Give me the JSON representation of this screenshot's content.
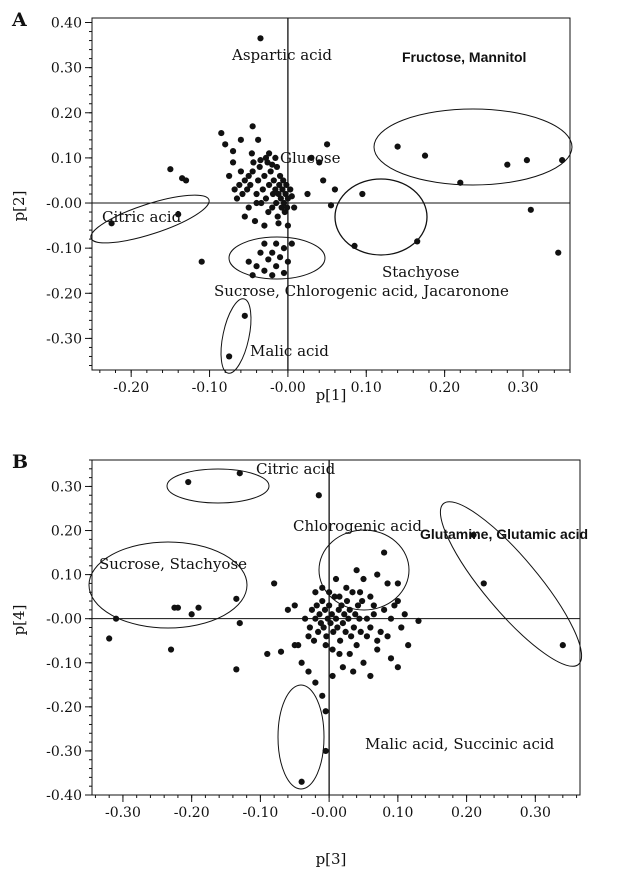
{
  "chart_data": [
    {
      "type": "scatter",
      "panel_label": "A",
      "xlabel": "p[1]",
      "ylabel": "p[2]",
      "xlim": [
        -0.25,
        0.36
      ],
      "ylim": [
        -0.37,
        0.41
      ],
      "xticks": [
        -0.2,
        -0.1,
        0.0,
        0.1,
        0.2,
        0.3
      ],
      "xtick_labels": [
        "-0.20",
        "-0.10",
        "-0.00",
        "0.10",
        "0.20",
        "0.30"
      ],
      "yticks": [
        0.4,
        0.3,
        0.2,
        0.1,
        0.0,
        -0.1,
        -0.2,
        -0.3
      ],
      "ytick_labels": [
        "0.40",
        "0.30",
        "0.20",
        "0.10",
        "-0.00",
        "-0.10",
        "-0.20",
        "-0.30"
      ],
      "grid": false,
      "points": [
        [
          -0.035,
          0.365
        ],
        [
          -0.038,
          0.14
        ],
        [
          -0.045,
          0.17
        ],
        [
          -0.06,
          0.14
        ],
        [
          -0.07,
          0.115
        ],
        [
          -0.085,
          0.155
        ],
        [
          -0.08,
          0.13
        ],
        [
          -0.15,
          0.075
        ],
        [
          -0.135,
          0.055
        ],
        [
          -0.13,
          0.05
        ],
        [
          -0.05,
          0.06
        ],
        [
          -0.048,
          0.04
        ],
        [
          -0.045,
          0.07
        ],
        [
          -0.04,
          0.02
        ],
        [
          -0.038,
          0.05
        ],
        [
          -0.036,
          0.08
        ],
        [
          -0.034,
          0.0
        ],
        [
          -0.032,
          0.03
        ],
        [
          -0.03,
          0.06
        ],
        [
          -0.028,
          0.01
        ],
        [
          -0.026,
          0.09
        ],
        [
          -0.025,
          -0.02
        ],
        [
          -0.024,
          0.04
        ],
        [
          -0.022,
          0.07
        ],
        [
          -0.02,
          -0.01
        ],
        [
          -0.019,
          0.02
        ],
        [
          -0.018,
          0.05
        ],
        [
          -0.016,
          0.03
        ],
        [
          -0.015,
          0.0
        ],
        [
          -0.014,
          0.08
        ],
        [
          -0.013,
          -0.03
        ],
        [
          -0.012,
          0.02
        ],
        [
          -0.011,
          0.04
        ],
        [
          -0.01,
          0.06
        ],
        [
          -0.009,
          0.01
        ],
        [
          -0.008,
          -0.01
        ],
        [
          -0.007,
          0.03
        ],
        [
          -0.006,
          0.05
        ],
        [
          -0.005,
          0.0
        ],
        [
          -0.004,
          -0.02
        ],
        [
          -0.003,
          0.02
        ],
        [
          -0.002,
          0.04
        ],
        [
          -0.001,
          -0.01
        ],
        [
          0.0,
          0.01
        ],
        [
          -0.052,
          0.03
        ],
        [
          -0.055,
          0.05
        ],
        [
          -0.058,
          0.02
        ],
        [
          -0.06,
          0.07
        ],
        [
          -0.062,
          0.04
        ],
        [
          -0.065,
          0.01
        ],
        [
          -0.042,
          -0.04
        ],
        [
          -0.044,
          0.09
        ],
        [
          -0.046,
          0.11
        ],
        [
          -0.028,
          0.1
        ],
        [
          -0.02,
          0.085
        ],
        [
          -0.016,
          0.1
        ],
        [
          -0.024,
          0.11
        ],
        [
          -0.03,
          -0.05
        ],
        [
          -0.012,
          -0.045
        ],
        [
          0.0,
          -0.05
        ],
        [
          0.005,
          0.015
        ],
        [
          0.008,
          -0.01
        ],
        [
          0.003,
          0.03
        ],
        [
          -0.07,
          0.09
        ],
        [
          -0.075,
          0.06
        ],
        [
          -0.068,
          0.03
        ],
        [
          -0.035,
          0.095
        ],
        [
          -0.04,
          0.0
        ],
        [
          -0.05,
          -0.01
        ],
        [
          -0.055,
          -0.03
        ],
        [
          0.05,
          0.13
        ],
        [
          0.045,
          0.05
        ],
        [
          0.06,
          0.03
        ],
        [
          0.04,
          0.09
        ],
        [
          0.055,
          -0.005
        ],
        [
          0.03,
          0.1
        ],
        [
          0.025,
          0.02
        ],
        [
          -0.03,
          -0.09
        ],
        [
          -0.015,
          -0.09
        ],
        [
          -0.005,
          -0.1
        ],
        [
          0.005,
          -0.09
        ],
        [
          -0.02,
          -0.11
        ],
        [
          -0.035,
          -0.11
        ],
        [
          -0.01,
          -0.12
        ],
        [
          -0.025,
          -0.125
        ],
        [
          0.0,
          -0.13
        ],
        [
          -0.04,
          -0.14
        ],
        [
          -0.015,
          -0.14
        ],
        [
          -0.03,
          -0.15
        ],
        [
          -0.005,
          -0.155
        ],
        [
          -0.045,
          -0.16
        ],
        [
          -0.02,
          -0.16
        ],
        [
          -0.05,
          -0.13
        ],
        [
          -0.11,
          -0.13
        ],
        [
          -0.055,
          -0.25
        ],
        [
          -0.075,
          -0.34
        ],
        [
          -0.225,
          -0.045
        ],
        [
          -0.14,
          -0.025
        ],
        [
          0.085,
          -0.095
        ],
        [
          0.095,
          0.02
        ],
        [
          0.165,
          -0.085
        ],
        [
          0.14,
          0.125
        ],
        [
          0.175,
          0.105
        ],
        [
          0.22,
          0.045
        ],
        [
          0.28,
          0.085
        ],
        [
          0.305,
          0.095
        ],
        [
          0.35,
          0.095
        ],
        [
          0.31,
          -0.015
        ],
        [
          0.345,
          -0.11
        ]
      ],
      "labels": [
        "Aspartic acid",
        "Fructose, Mannitol",
        "Glucose",
        "Citric acid",
        "Stachyose",
        "Sucrose, Chlorogenic acid, Jacaronone",
        "Malic acid"
      ]
    },
    {
      "type": "scatter",
      "panel_label": "B",
      "xlabel": "p[3]",
      "ylabel": "p[4]",
      "xlim": [
        -0.345,
        0.365
      ],
      "ylim": [
        -0.4,
        0.36
      ],
      "xticks": [
        -0.3,
        -0.2,
        -0.1,
        0.0,
        0.1,
        0.2,
        0.3
      ],
      "xtick_labels": [
        "-0.30",
        "-0.20",
        "-0.10",
        "-0.00",
        "0.10",
        "0.20",
        "0.30"
      ],
      "yticks": [
        0.3,
        0.2,
        0.1,
        0.0,
        -0.1,
        -0.2,
        -0.3,
        -0.4
      ],
      "ytick_labels": [
        "0.30",
        "0.20",
        "0.10",
        "-0.00",
        "-0.10",
        "-0.20",
        "-0.30",
        "-0.40"
      ],
      "grid": false,
      "points": [
        [
          -0.205,
          0.31
        ],
        [
          -0.13,
          0.33
        ],
        [
          -0.015,
          0.28
        ],
        [
          0.21,
          0.19
        ],
        [
          0.225,
          0.08
        ],
        [
          0.34,
          -0.06
        ],
        [
          -0.31,
          0.0
        ],
        [
          -0.32,
          -0.045
        ],
        [
          -0.225,
          0.025
        ],
        [
          -0.22,
          0.025
        ],
        [
          -0.2,
          0.01
        ],
        [
          -0.19,
          0.025
        ],
        [
          -0.23,
          -0.07
        ],
        [
          -0.135,
          0.045
        ],
        [
          -0.135,
          -0.115
        ],
        [
          -0.13,
          -0.01
        ],
        [
          -0.005,
          -0.21
        ],
        [
          -0.005,
          -0.3
        ],
        [
          -0.04,
          -0.37
        ],
        [
          -0.01,
          -0.175
        ],
        [
          -0.02,
          -0.145
        ],
        [
          -0.03,
          -0.12
        ],
        [
          0.005,
          -0.13
        ],
        [
          0.08,
          0.15
        ],
        [
          0.07,
          0.1
        ],
        [
          0.085,
          0.08
        ],
        [
          0.1,
          0.04
        ],
        [
          0.13,
          -0.005
        ],
        [
          0.09,
          -0.09
        ],
        [
          0.1,
          -0.11
        ],
        [
          0.115,
          -0.06
        ],
        [
          0.1,
          0.08
        ],
        [
          -0.08,
          0.08
        ],
        [
          -0.09,
          -0.08
        ],
        [
          -0.07,
          -0.075
        ],
        [
          -0.05,
          -0.06
        ],
        [
          -0.04,
          -0.1
        ],
        [
          -0.06,
          0.02
        ],
        [
          -0.02,
          0.06
        ],
        [
          0.04,
          0.11
        ],
        [
          0.045,
          0.06
        ],
        [
          0.05,
          0.09
        ],
        [
          0.03,
          -0.08
        ],
        [
          0.02,
          -0.11
        ],
        [
          0.035,
          -0.12
        ],
        [
          0.05,
          -0.1
        ],
        [
          0.06,
          -0.13
        ],
        [
          0.07,
          -0.07
        ],
        [
          0.055,
          -0.04
        ],
        [
          0.075,
          -0.03
        ],
        [
          0.065,
          0.03
        ],
        [
          0.06,
          0.05
        ],
        [
          -0.03,
          -0.04
        ],
        [
          -0.035,
          0.0
        ],
        [
          -0.028,
          -0.02
        ],
        [
          -0.025,
          0.02
        ],
        [
          -0.022,
          -0.05
        ],
        [
          -0.02,
          0.0
        ],
        [
          -0.018,
          0.03
        ],
        [
          -0.016,
          -0.03
        ],
        [
          -0.014,
          0.01
        ],
        [
          -0.012,
          -0.01
        ],
        [
          -0.01,
          0.04
        ],
        [
          -0.008,
          -0.02
        ],
        [
          -0.006,
          0.02
        ],
        [
          -0.004,
          -0.04
        ],
        [
          -0.002,
          0.0
        ],
        [
          0.0,
          0.03
        ],
        [
          0.002,
          -0.01
        ],
        [
          0.004,
          0.01
        ],
        [
          0.006,
          -0.03
        ],
        [
          0.008,
          0.05
        ],
        [
          0.01,
          0.0
        ],
        [
          0.012,
          -0.02
        ],
        [
          0.014,
          0.02
        ],
        [
          0.016,
          -0.05
        ],
        [
          0.018,
          0.03
        ],
        [
          0.02,
          -0.01
        ],
        [
          0.022,
          0.01
        ],
        [
          0.024,
          -0.03
        ],
        [
          0.026,
          0.04
        ],
        [
          0.028,
          0.0
        ],
        [
          0.03,
          0.02
        ],
        [
          0.032,
          -0.04
        ],
        [
          0.034,
          0.06
        ],
        [
          0.036,
          -0.02
        ],
        [
          0.038,
          0.01
        ],
        [
          0.04,
          -0.06
        ],
        [
          0.042,
          0.03
        ],
        [
          0.044,
          0.0
        ],
        [
          0.046,
          -0.03
        ],
        [
          0.048,
          0.04
        ],
        [
          -0.045,
          -0.06
        ],
        [
          -0.05,
          0.03
        ],
        [
          0.015,
          -0.08
        ],
        [
          0.005,
          -0.07
        ],
        [
          -0.005,
          -0.06
        ],
        [
          0.025,
          0.07
        ],
        [
          0.015,
          0.05
        ],
        [
          0.0,
          0.06
        ],
        [
          -0.01,
          0.07
        ],
        [
          0.01,
          0.09
        ],
        [
          0.055,
          0.0
        ],
        [
          0.06,
          -0.02
        ],
        [
          0.065,
          0.01
        ],
        [
          0.07,
          -0.05
        ],
        [
          0.08,
          0.02
        ],
        [
          0.085,
          -0.04
        ],
        [
          0.09,
          0.0
        ],
        [
          0.095,
          0.03
        ],
        [
          0.105,
          -0.02
        ],
        [
          0.11,
          0.01
        ]
      ],
      "labels": [
        "Citric acid",
        "Glutamine, Glutamic acid",
        "Chlorogenic acid",
        "Sucrose, Stachyose",
        "Malic acid, Succinic acid"
      ]
    }
  ]
}
